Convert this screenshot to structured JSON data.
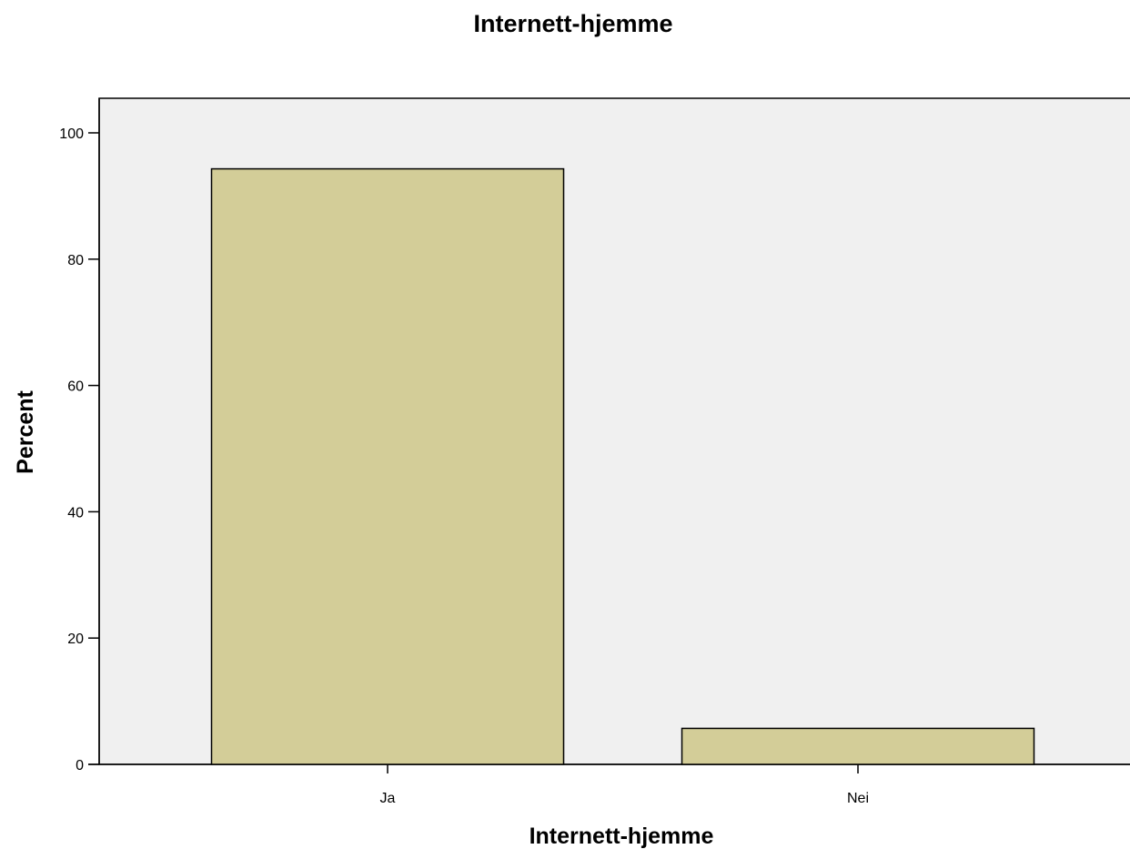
{
  "colors": {
    "page_background": "#ffffff",
    "plot_background": "#f0f0f0",
    "bar_fill": "#d3cd98",
    "bar_stroke": "#000000",
    "axis": "#000000"
  },
  "chart_data": {
    "type": "bar",
    "title": "Internett-hjemme",
    "xlabel": "Internett-hjemme",
    "ylabel": "Percent",
    "categories": [
      "Ja",
      "Nei"
    ],
    "values": [
      94.3,
      5.7
    ],
    "ylim": [
      0,
      100
    ],
    "yticks": [
      0,
      20,
      40,
      60,
      80,
      100
    ],
    "grid": false,
    "legend": "none"
  }
}
